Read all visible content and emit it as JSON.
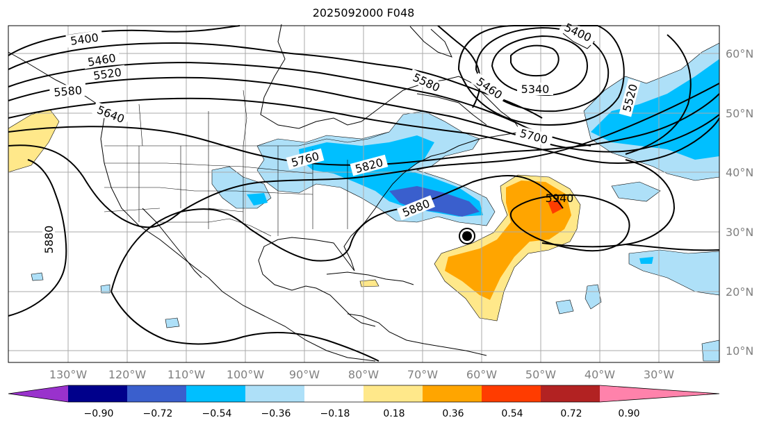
{
  "title": "2025092000 F048",
  "lat_labels": [
    "60°N",
    "50°N",
    "40°N",
    "30°N",
    "20°N",
    "10°N"
  ],
  "lon_labels": [
    "130°W",
    "120°W",
    "110°W",
    "100°W",
    "90°W",
    "80°W",
    "70°W",
    "60°W",
    "50°W",
    "40°W",
    "30°W"
  ],
  "contour_labels": [
    "5400",
    "5460",
    "5520",
    "5580",
    "5640",
    "5760",
    "5820",
    "5880",
    "5580",
    "5460",
    "5340",
    "5400",
    "5520",
    "5700",
    "5940",
    "5880"
  ],
  "colorbar": {
    "ticks": [
      "−0.90",
      "−0.72",
      "−0.54",
      "−0.36",
      "−0.18",
      "0.18",
      "0.36",
      "0.54",
      "0.72",
      "0.90"
    ],
    "colors": [
      "#9932CC",
      "#00008B",
      "#3A5FCD",
      "#00BFFF",
      "#AEE0F8",
      "#FFFFFF",
      "#FFE88A",
      "#FFA500",
      "#FF3C00",
      "#B22222",
      "#FF82AB"
    ]
  },
  "colors": {
    "neg_light": "#AEE0F8",
    "neg_mid": "#00BFFF",
    "neg_dark": "#3A5FCD",
    "pos_light": "#FFE88A",
    "pos_mid": "#FFA500",
    "pos_dark": "#FF3C00",
    "grid": "#AAAAAA",
    "axis_text": "#808080"
  }
}
